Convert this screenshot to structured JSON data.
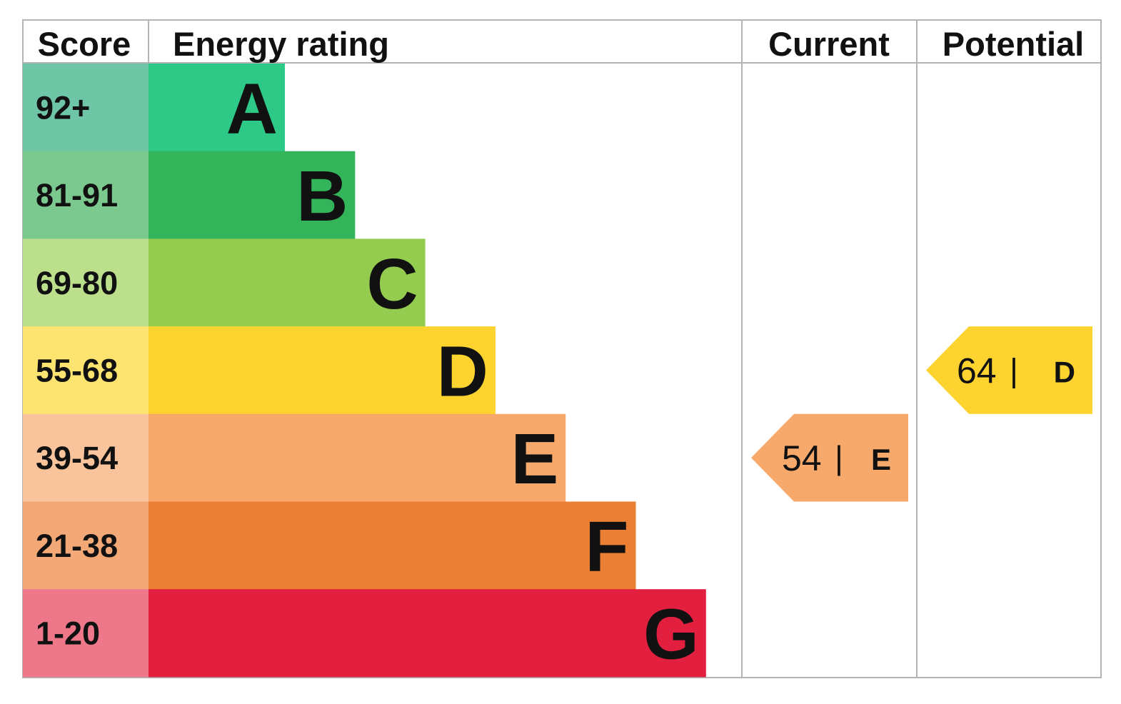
{
  "chart_data": {
    "type": "table",
    "headers": {
      "score": "Score",
      "rating": "Energy rating",
      "current": "Current",
      "potential": "Potential"
    },
    "bands": [
      {
        "score": "92+",
        "letter": "A",
        "color": "#2ec986",
        "score_color": "#6ec6a7"
      },
      {
        "score": "81-91",
        "letter": "B",
        "color": "#33b35a",
        "score_color": "#7cc98f"
      },
      {
        "score": "69-80",
        "letter": "C",
        "color": "#93cc4f",
        "score_color": "#bcdf8c"
      },
      {
        "score": "55-68",
        "letter": "D",
        "color": "#fcd32f",
        "score_color": "#fde36f"
      },
      {
        "score": "39-54",
        "letter": "E",
        "color": "#f7a96c",
        "score_color": "#f9c49c"
      },
      {
        "score": "21-38",
        "letter": "F",
        "color": "#eb7f33",
        "score_color": "#f2a977"
      },
      {
        "score": "1-20",
        "letter": "G",
        "color": "#e31f3f",
        "score_color": "#ee778a"
      }
    ],
    "current": {
      "value": 54,
      "letter": "E",
      "separator": "|"
    },
    "potential": {
      "value": 64,
      "letter": "D",
      "separator": "|"
    }
  }
}
